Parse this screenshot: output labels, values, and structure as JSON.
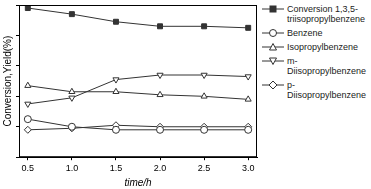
{
  "chart_data": {
    "type": "line",
    "x_label": "time/h",
    "y_label": "Conversion,Yield(%)",
    "x": [
      0.5,
      1.0,
      1.5,
      2.0,
      2.5,
      3.0
    ],
    "xlim": [
      0.4,
      3.1
    ],
    "xticks": [
      {
        "value": 0.5,
        "label": "0.5"
      },
      {
        "value": 1,
        "label": "1.0"
      },
      {
        "value": 1.5,
        "label": "1.5"
      },
      {
        "value": 2,
        "label": "2.0"
      },
      {
        "value": 2.5,
        "label": "2.5"
      },
      {
        "value": 3,
        "label": "3.0"
      }
    ],
    "ylim": [
      0,
      100
    ],
    "yticks": [
      0,
      20,
      40,
      60,
      80,
      100
    ],
    "tick_labels": "x",
    "grid": false,
    "legend": "right",
    "series": [
      {
        "name": "Conversion 1,3,5-triisopropylbenzene",
        "color": "#333333",
        "marker": "square",
        "values": [
          98,
          94,
          89,
          86,
          86,
          85
        ]
      },
      {
        "name": "Benzene",
        "color": "#333333",
        "marker": "circle",
        "values": [
          25,
          20,
          18,
          18,
          18,
          18
        ]
      },
      {
        "name": "Isopropylbenzene",
        "color": "#333333",
        "marker": "triangle",
        "values": [
          47,
          43,
          43,
          41,
          40,
          38
        ]
      },
      {
        "name": "m-Diisopropylbenzene",
        "color": "#333333",
        "marker": "triangle_down",
        "values": [
          35,
          39,
          51,
          54,
          54,
          53
        ]
      },
      {
        "name": "p-Diisopropylbenzene",
        "color": "#333333",
        "marker": "diamond",
        "values": [
          18,
          19,
          21,
          20,
          20,
          20
        ]
      }
    ]
  }
}
